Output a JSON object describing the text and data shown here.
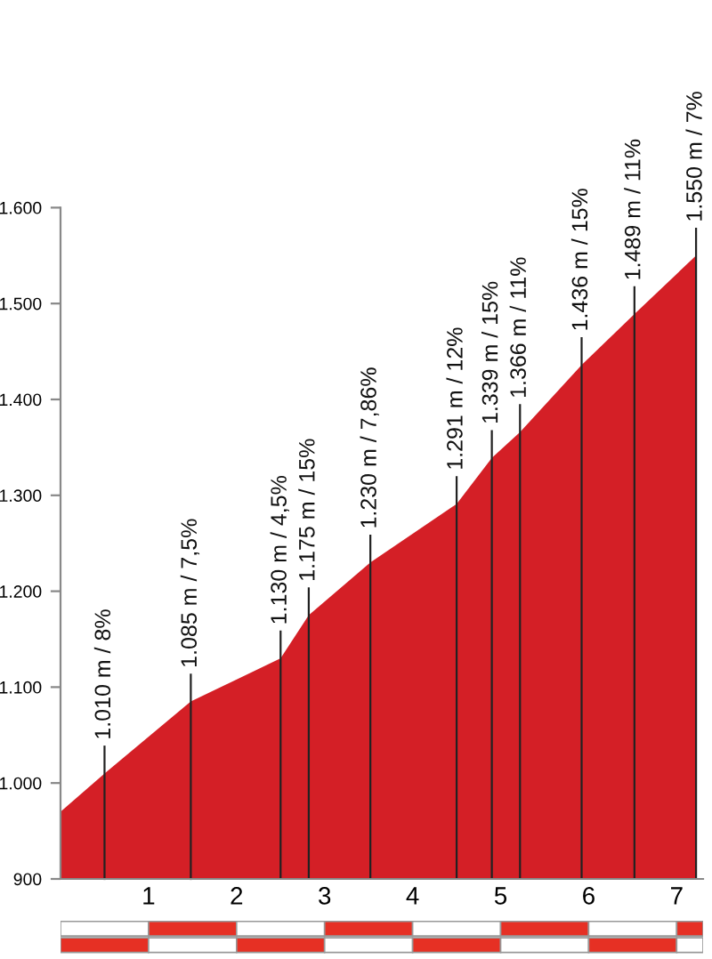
{
  "chart_data": {
    "type": "area",
    "x": [
      0,
      0.5,
      1.48,
      2.5,
      2.82,
      3.52,
      4.5,
      4.9,
      5.22,
      5.92,
      6.52,
      7.22
    ],
    "series": [
      {
        "color": "#d41f26",
        "values": [
          970,
          1010,
          1085,
          1130,
          1175,
          1230,
          1291,
          1339,
          1366,
          1436,
          1489,
          1550
        ]
      }
    ],
    "xlim": [
      0,
      7.3
    ],
    "xticks": [
      1,
      2,
      3,
      4,
      5,
      6,
      7
    ],
    "ylim": [
      900,
      1600
    ],
    "yticks": [
      {
        "value": 900,
        "label": "900"
      },
      {
        "value": 1000,
        "label": "1.000"
      },
      {
        "value": 1100,
        "label": "1.100"
      },
      {
        "value": 1200,
        "label": "1.200"
      },
      {
        "value": 1300,
        "label": "1.300"
      },
      {
        "value": 1400,
        "label": "1.400"
      },
      {
        "value": 1500,
        "label": "1.500"
      },
      {
        "value": 1600,
        "label": "1.600"
      }
    ],
    "grid": false,
    "legend": false,
    "ref_lines": [
      {
        "axis": "x",
        "value": 0.5,
        "label": "1.010 m / 8%"
      },
      {
        "axis": "x",
        "value": 1.48,
        "label": "1.085 m / 7,5%"
      },
      {
        "axis": "x",
        "value": 2.5,
        "label": "1.130 m / 4,5%"
      },
      {
        "axis": "x",
        "value": 2.82,
        "label": "1.175 m / 15%"
      },
      {
        "axis": "x",
        "value": 3.52,
        "label": "1.230 m / 7,86%"
      },
      {
        "axis": "x",
        "value": 4.5,
        "label": "1.291 m / 12%"
      },
      {
        "axis": "x",
        "value": 4.9,
        "label": "1.339 m / 15%"
      },
      {
        "axis": "x",
        "value": 5.22,
        "label": "1.366 m / 11%"
      },
      {
        "axis": "x",
        "value": 5.92,
        "label": "1.436 m / 15%"
      },
      {
        "axis": "x",
        "value": 6.52,
        "label": "1.489 m / 11%"
      },
      {
        "axis": "x",
        "value": 7.22,
        "label": "1.550 m / 7%"
      }
    ]
  }
}
